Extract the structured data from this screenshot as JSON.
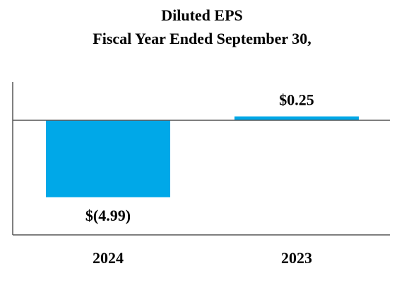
{
  "chart_data": {
    "type": "bar",
    "title": [
      "Diluted EPS",
      "Fiscal Year Ended September 30,"
    ],
    "categories": [
      "2024",
      "2023"
    ],
    "values": [
      -4.99,
      0.25
    ],
    "value_labels": [
      "$(4.99)",
      "$0.25"
    ],
    "xlabel": "",
    "ylabel": "",
    "grid": false,
    "legend": "none",
    "colors": {
      "bar": "#00A8E8",
      "axis": "#555555",
      "text": "#000000"
    }
  }
}
